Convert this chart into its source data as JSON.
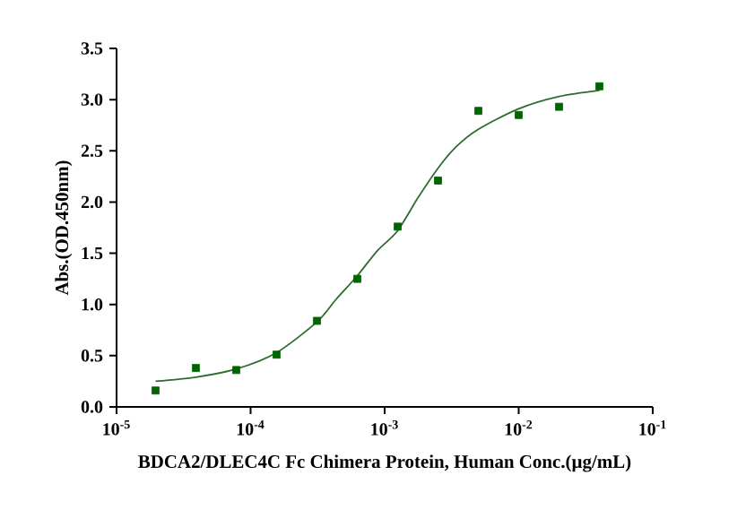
{
  "chart_data": {
    "type": "scatter",
    "xlabel": "BDCA2/DLEC4C Fc Chimera Protein, Human  Conc.(µg/mL)",
    "ylabel": "Abs.(OD.450nm)",
    "log": "x",
    "xlim": [
      1e-05,
      0.1
    ],
    "ylim": [
      0,
      3.5
    ],
    "xticks": [
      {
        "value": 1e-05,
        "label": "10$^{-5}$"
      },
      {
        "value": 0.0001,
        "label": "10$^{-4}$"
      },
      {
        "value": 0.001,
        "label": "10$^{-3}$"
      },
      {
        "value": 0.01,
        "label": "10$^{-2}$"
      },
      {
        "value": 0.1,
        "label": "10$^{-1}$"
      }
    ],
    "yticks": [
      {
        "value": 0,
        "label": "0.0"
      },
      {
        "value": 0.5,
        "label": "0.5"
      },
      {
        "value": 1,
        "label": "1.0"
      },
      {
        "value": 1.5,
        "label": "1.5"
      },
      {
        "value": 2,
        "label": "2.0"
      },
      {
        "value": 2.5,
        "label": "2.5"
      },
      {
        "value": 3,
        "label": "3.0"
      },
      {
        "value": 3.5,
        "label": "3.5"
      }
    ],
    "grid": false,
    "series": [
      {
        "type": "scatter",
        "color": "#006400",
        "marker": "square",
        "x": [
          1.953125e-05,
          3.90625e-05,
          7.8125e-05,
          0.00015625,
          0.0003125,
          0.000625,
          0.00125,
          0.0025,
          0.005,
          0.01,
          0.02,
          0.04
        ],
        "values": [
          0.16,
          0.38,
          0.36,
          0.51,
          0.84,
          1.25,
          1.76,
          2.21,
          2.89,
          2.85,
          2.93,
          3.13
        ]
      },
      {
        "type": "line",
        "color": "#2e6b2e",
        "marker": "none",
        "line_style": "solid",
        "x": [
          1.953125e-05,
          3.90625e-05,
          7.8125e-05,
          0.00015625,
          0.0003125,
          0.000434,
          0.000625,
          0.000875,
          0.00125,
          0.00177,
          0.0025,
          0.00342,
          0.005,
          0.01,
          0.02,
          0.04
        ],
        "values": [
          0.25,
          0.29,
          0.37,
          0.53,
          0.83,
          1.05,
          1.28,
          1.52,
          1.72,
          2.04,
          2.33,
          2.54,
          2.71,
          2.91,
          3.03,
          3.09
        ]
      }
    ]
  }
}
